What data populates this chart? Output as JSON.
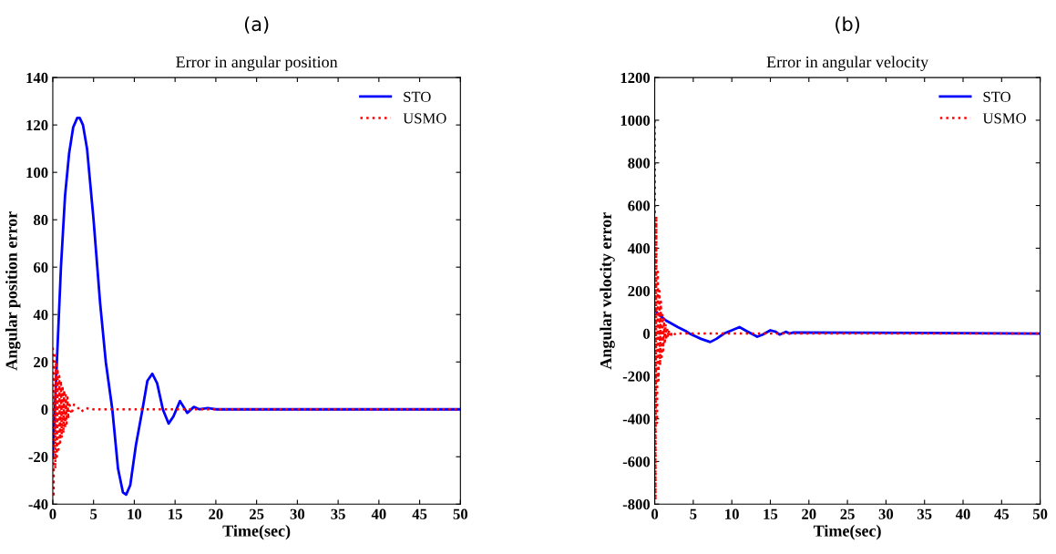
{
  "chart_data": [
    {
      "type": "line",
      "title": "Error in angular position",
      "annotations": [
        "(a)"
      ],
      "xlabel": "Time(sec)",
      "ylabel": "Angular position error",
      "xlim": [
        0,
        50
      ],
      "xticks": [
        0,
        5,
        10,
        15,
        20,
        25,
        30,
        35,
        40,
        45,
        50
      ],
      "ylim": [
        -40,
        140
      ],
      "yticks": [
        -40,
        -20,
        0,
        20,
        40,
        60,
        80,
        100,
        120,
        140
      ],
      "grid": false,
      "legend": "top right",
      "marker": "none",
      "series": [
        {
          "name": "STO",
          "color": "#0000ff",
          "line_style": "solid",
          "x": [
            0,
            0.5,
            1,
            1.5,
            2,
            2.5,
            3,
            3.3,
            3.7,
            4.2,
            5,
            5.8,
            6.5,
            7.3,
            8,
            8.6,
            9,
            9.5,
            10.2,
            11,
            11.6,
            12.2,
            12.8,
            13.5,
            14.2,
            14.8,
            15.6,
            16.5,
            17.3,
            18,
            19,
            20,
            50
          ],
          "values": [
            -20,
            20,
            60,
            90,
            108,
            119,
            123,
            123,
            120,
            110,
            80,
            45,
            20,
            0,
            -25,
            -35,
            -36,
            -32,
            -15,
            0,
            12,
            15,
            11,
            0,
            -6,
            -3,
            3.5,
            -1.5,
            1,
            0,
            0.5,
            0,
            0
          ]
        },
        {
          "name": "USMO",
          "color": "#ff0000",
          "line_style": "dotted",
          "x": [
            0,
            0.1,
            0.2,
            0.3,
            0.4,
            0.5,
            0.6,
            0.7,
            0.8,
            0.9,
            1,
            1.1,
            1.2,
            1.3,
            1.4,
            1.5,
            1.6,
            1.7,
            1.8,
            1.9,
            2,
            2.3,
            2.6,
            3,
            3.5,
            4,
            5,
            50
          ],
          "values": [
            26,
            -37,
            24,
            -25,
            20,
            -20,
            17,
            -17,
            14,
            -14,
            12,
            -12,
            10,
            -10,
            8,
            -8,
            6,
            -6,
            5,
            -4,
            3,
            -2,
            2,
            1,
            -1,
            0.5,
            0,
            0
          ]
        }
      ]
    },
    {
      "type": "line",
      "title": "Error in angular velocity",
      "annotations": [
        "(b)"
      ],
      "xlabel": "Time(sec)",
      "ylabel": "Angular velocity error",
      "xlim": [
        0,
        50
      ],
      "xticks": [
        0,
        5,
        10,
        15,
        20,
        25,
        30,
        35,
        40,
        45,
        50
      ],
      "ylim": [
        -800,
        1200
      ],
      "yticks": [
        -800,
        -600,
        -400,
        -200,
        0,
        200,
        400,
        600,
        800,
        1000,
        1200
      ],
      "grid": false,
      "legend": "top right",
      "marker": "none",
      "series": [
        {
          "name": "STO",
          "color": "#0000ff",
          "line_style": "solid",
          "x": [
            0,
            0.5,
            1,
            1.5,
            2,
            3,
            4,
            4.5,
            6,
            7.2,
            8,
            9,
            10,
            11,
            12,
            13.3,
            14,
            15,
            15.7,
            16.2,
            17,
            17.5,
            18,
            50
          ],
          "values": [
            110,
            90,
            75,
            60,
            50,
            30,
            12,
            0,
            -25,
            -40,
            -25,
            0,
            15,
            30,
            10,
            -15,
            -5,
            15,
            8,
            -5,
            8,
            0,
            5,
            0
          ]
        },
        {
          "name": "USMO",
          "color": "#ff0000",
          "line_style": "dotted",
          "x": [
            0,
            0.1,
            0.2,
            0.3,
            0.4,
            0.5,
            0.6,
            0.7,
            0.8,
            0.9,
            1,
            1.1,
            1.2,
            1.3,
            1.4,
            1.5,
            1.6,
            1.7,
            1.8,
            1.9,
            2,
            2.2,
            2.4,
            2.6,
            2.8,
            3,
            50
          ],
          "values": [
            1000,
            -780,
            550,
            -420,
            290,
            -220,
            200,
            -150,
            150,
            -110,
            100,
            -80,
            70,
            -50,
            45,
            -30,
            30,
            -20,
            18,
            -12,
            10,
            -6,
            5,
            -3,
            2,
            0,
            0
          ]
        }
      ]
    }
  ]
}
